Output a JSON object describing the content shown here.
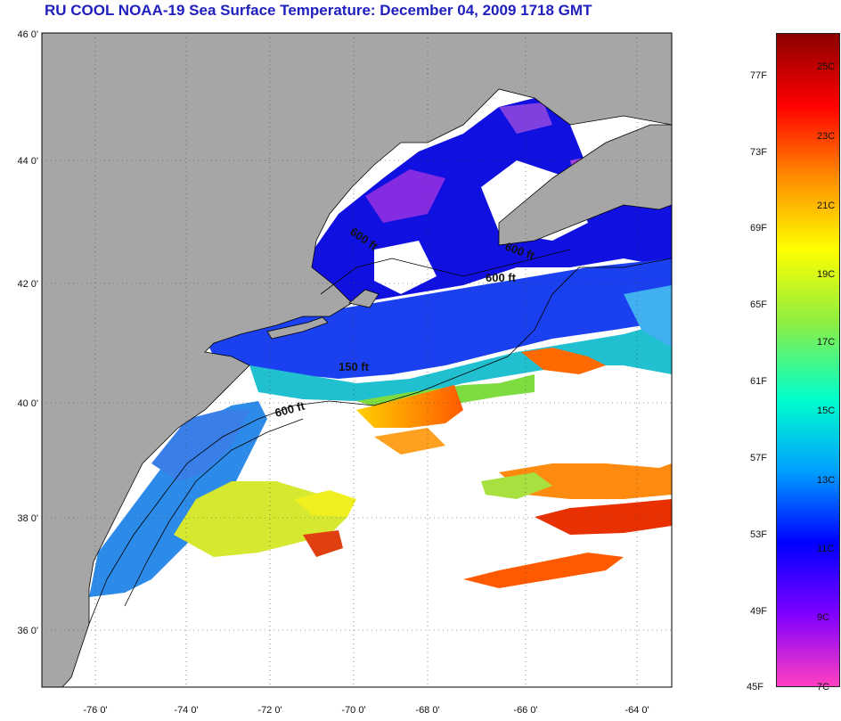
{
  "title": "RU COOL  NOAA-19  Sea Surface Temperature:  December 04, 2009 1718 GMT",
  "lat_ticks": [
    "46 0'",
    "44 0'",
    "42 0'",
    "40 0'",
    "38 0'",
    "36 0'"
  ],
  "lon_ticks": [
    "-76 0'",
    "-74 0'",
    "-72 0'",
    "-70 0'",
    "-68 0'",
    "-66 0'",
    "-64 0'"
  ],
  "contour_labels": [
    "600 ft",
    "600 ft",
    "600 ft",
    "150 ft",
    "600 ft"
  ],
  "colorbar": {
    "fahrenheit": [
      "77F",
      "73F",
      "69F",
      "65F",
      "61F",
      "57F",
      "53F",
      "49F",
      "45F"
    ],
    "celsius": [
      "25C",
      "23C",
      "21C",
      "19C",
      "17C",
      "15C",
      "13C",
      "11C",
      "9C",
      "7C"
    ],
    "colors": [
      "#8b0000",
      "#ff0000",
      "#ff8c00",
      "#ffff00",
      "#90ee40",
      "#00ffcc",
      "#00a0ff",
      "#0000ff",
      "#8000ff",
      "#ff40c0"
    ]
  },
  "colors": {
    "land": "#a6a6a6",
    "title": "#1f1fbf",
    "cloud": "#ffffff"
  }
}
